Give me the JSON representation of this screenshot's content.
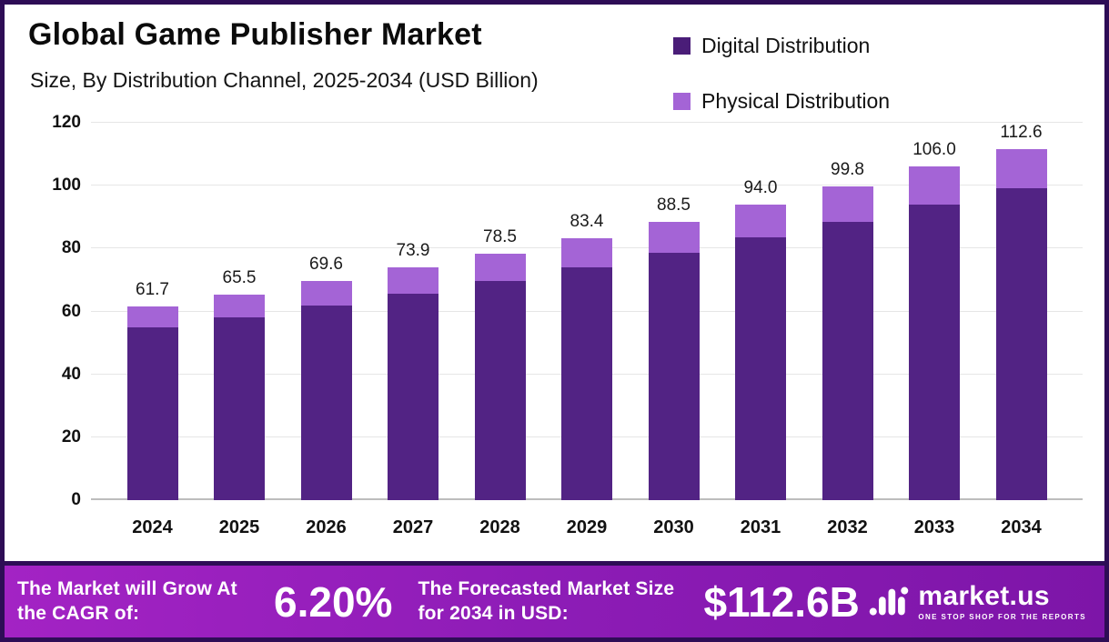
{
  "header": {
    "title": "Global Game Publisher Market",
    "subtitle": "Size, By Distribution Channel, 2025-2034 (USD Billion)"
  },
  "legend": [
    {
      "label": "Digital Distribution",
      "color": "#4a1d78"
    },
    {
      "label": "Physical Distribution",
      "color": "#a464d6"
    }
  ],
  "chart_data": {
    "type": "bar",
    "stacked": true,
    "title": "Global Game Publisher Market Size, By Distribution Channel, 2025-2034 (USD Billion)",
    "categories": [
      "2024",
      "2025",
      "2026",
      "2027",
      "2028",
      "2029",
      "2030",
      "2031",
      "2032",
      "2033",
      "2034"
    ],
    "series": [
      {
        "name": "Digital Distribution",
        "color": "#522384",
        "values": [
          55.0,
          58.2,
          61.8,
          65.6,
          69.7,
          74.0,
          78.6,
          83.5,
          88.6,
          94.1,
          100.0
        ]
      },
      {
        "name": "Physical Distribution",
        "color": "#a464d6",
        "values": [
          6.7,
          7.3,
          7.8,
          8.3,
          8.8,
          9.4,
          9.9,
          10.5,
          11.2,
          11.9,
          12.6
        ]
      }
    ],
    "totals": [
      61.7,
      65.5,
      69.6,
      73.9,
      78.5,
      83.4,
      88.5,
      94.0,
      99.8,
      106.0,
      112.6
    ],
    "total_labels": [
      "61.7",
      "65.5",
      "69.6",
      "73.9",
      "78.5",
      "83.4",
      "88.5",
      "94.0",
      "99.8",
      "106.0",
      "112.6"
    ],
    "xlabel": "",
    "ylabel": "",
    "ylim": [
      0,
      120
    ],
    "yticks": [
      0,
      20,
      40,
      60,
      80,
      100,
      120
    ],
    "grid": true,
    "legend_position": "top-right"
  },
  "footer": {
    "cagr_label": "The Market will Grow At the CAGR of:",
    "cagr_value": "6.20%",
    "forecast_label": "The Forecasted Market Size for 2034 in USD:",
    "forecast_value": "$112.6B",
    "brand_name": "market.us",
    "brand_tagline": "ONE STOP SHOP FOR THE REPORTS",
    "brand_icon": "marketus-wave-icon"
  },
  "colors": {
    "frame": "#2e0d56",
    "banner_gradient_left": "#a323c4",
    "banner_gradient_mid": "#8d1cb6",
    "banner_gradient_right": "#7d15a8"
  }
}
